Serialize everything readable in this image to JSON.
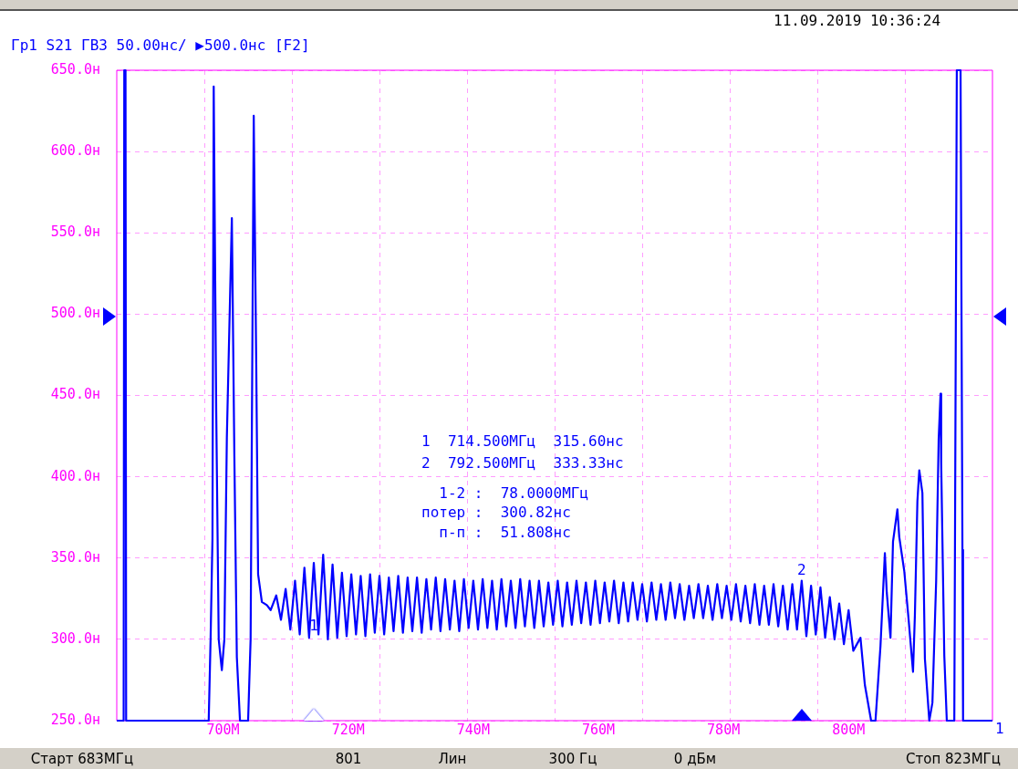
{
  "chart_data": {
    "type": "line",
    "title": "Гр1 S21 ГВЗ 50.00нс/ ▶500.0нс [F2]",
    "x": [
      683,
      684.1,
      684.2,
      684.4,
      684.5,
      697.7,
      698.0,
      698.3,
      698.5,
      698.9,
      699.3,
      699.8,
      700.2,
      700.6,
      701.4,
      701.8,
      702.2,
      702.7,
      704.0,
      704.4,
      704.9,
      705.3,
      705.6,
      706.2,
      707.0,
      707.6,
      708.5,
      709.25,
      710,
      710.75,
      711.5,
      712.25,
      713,
      713.75,
      714.5,
      715.25,
      716,
      716.75,
      717.5,
      718.25,
      719,
      719.75,
      720.5,
      721.25,
      722,
      722.75,
      723.5,
      724.25,
      725,
      725.75,
      726.5,
      727.25,
      728,
      728.75,
      729.5,
      730.25,
      731,
      731.75,
      732.5,
      733.25,
      734,
      734.75,
      735.5,
      736.25,
      737,
      737.75,
      738.5,
      739.25,
      740,
      740.75,
      741.5,
      742.25,
      743,
      743.75,
      744.5,
      745.25,
      746,
      746.75,
      747.5,
      748.25,
      749,
      749.75,
      750.5,
      751.25,
      752,
      752.75,
      753.5,
      754.25,
      755,
      755.75,
      756.5,
      757.25,
      758,
      758.75,
      759.5,
      760.25,
      761,
      761.75,
      762.5,
      763.25,
      764,
      764.75,
      765.5,
      766.25,
      767,
      767.75,
      768.5,
      769.25,
      770,
      770.75,
      771.5,
      772.25,
      773,
      773.75,
      774.5,
      775.25,
      776,
      776.75,
      777.5,
      778.25,
      779,
      779.75,
      780.5,
      781.25,
      782,
      782.75,
      783.5,
      784.25,
      785,
      785.75,
      786.5,
      787.25,
      788,
      788.75,
      789.5,
      790.25,
      791,
      791.75,
      792.5,
      793.25,
      794,
      794.75,
      795.5,
      796.25,
      797,
      797.75,
      798.5,
      799.25,
      800,
      800.75,
      801.9,
      802.6,
      803.6,
      804.3,
      805.1,
      805.8,
      806.1,
      806.7,
      807.1,
      807.8,
      808.1,
      808.9,
      809.6,
      810.3,
      810.6,
      811.0,
      811.3,
      811.8,
      812.2,
      812.9,
      813.4,
      814.0,
      814.4,
      814.7,
      814.8,
      815.3,
      815.7,
      816.9,
      817.3,
      817.9,
      818.2,
      818.3,
      823
    ],
    "series": [
      {
        "color": "#0000ff",
        "values": [
          250,
          250,
          650,
          650,
          250,
          250,
          300,
          362,
          640,
          441,
          300,
          281,
          300,
          424,
          559,
          413,
          289,
          250,
          250,
          300,
          622,
          469,
          340,
          323,
          321,
          318,
          327,
          312,
          331,
          306,
          336,
          303,
          344,
          301,
          347,
          303,
          352,
          300,
          346,
          301,
          341,
          302,
          340,
          303,
          339,
          302,
          340,
          304,
          339,
          303,
          338,
          305,
          339,
          304,
          338,
          305,
          338,
          304,
          337,
          306,
          338,
          305,
          337,
          306,
          336,
          305,
          337,
          307,
          336,
          306,
          337,
          307,
          336,
          306,
          337,
          308,
          336,
          307,
          337,
          308,
          336,
          307,
          336,
          308,
          335,
          309,
          336,
          308,
          335,
          309,
          336,
          310,
          335,
          309,
          336,
          310,
          335,
          311,
          336,
          310,
          335,
          311,
          335,
          312,
          334,
          311,
          335,
          312,
          334,
          312,
          335,
          313,
          334,
          312,
          333,
          313,
          334,
          313,
          333,
          312,
          334,
          313,
          333,
          312,
          334,
          311,
          333,
          310,
          334,
          309,
          333,
          309,
          334,
          308,
          333,
          306,
          334,
          306,
          336,
          302,
          333,
          303,
          332,
          301,
          326,
          300,
          322,
          297,
          318,
          293,
          301,
          272,
          250,
          250,
          296,
          353,
          329,
          301,
          360,
          380,
          363,
          342,
          312,
          280,
          315,
          385,
          404,
          390,
          288,
          250,
          261,
          336,
          423,
          451,
          409,
          290,
          250,
          250,
          650,
          650,
          355,
          250,
          250
        ]
      }
    ],
    "xlim": [
      683,
      823
    ],
    "xticks": [
      {
        "value": 697,
        "label": null
      },
      {
        "value": 700,
        "label": "700M"
      },
      {
        "value": 711,
        "label": null
      },
      {
        "value": 720,
        "label": "720M"
      },
      {
        "value": 725,
        "label": null
      },
      {
        "value": 739,
        "label": null
      },
      {
        "value": 740,
        "label": "740M"
      },
      {
        "value": 753,
        "label": null
      },
      {
        "value": 760,
        "label": "760M"
      },
      {
        "value": 767,
        "label": null
      },
      {
        "value": 780,
        "label": "780M"
      },
      {
        "value": 781,
        "label": null
      },
      {
        "value": 795,
        "label": null
      },
      {
        "value": 800,
        "label": "800M"
      },
      {
        "value": 809,
        "label": null
      }
    ],
    "ylim": [
      250,
      650
    ],
    "yticks": [
      {
        "value": 250,
        "label": "250.0н"
      },
      {
        "value": 300,
        "label": "300.0н"
      },
      {
        "value": 350,
        "label": "350.0н"
      },
      {
        "value": 400,
        "label": "400.0н"
      },
      {
        "value": 450,
        "label": "450.0н"
      },
      {
        "value": 500,
        "label": "500.0н"
      },
      {
        "value": 550,
        "label": "550.0н"
      },
      {
        "value": 600,
        "label": "600.0н"
      },
      {
        "value": 650,
        "label": "650.0н"
      }
    ],
    "grid": true,
    "legend": false,
    "marker": "none",
    "line_style": "solid",
    "annotations": [
      "11.09.2019 10:36:24",
      "1  714.500МГц  315.60нс",
      "2  792.500МГц  333.33нс",
      "  1-2 :  78.0000МГц",
      "потер :  300.82нс",
      "  п-п :  51.808нс",
      "Старт 683МГц",
      "801",
      "Лин",
      "300 Гц",
      "0 дБм",
      "Стоп 823МГц",
      {
        "text": "1",
        "x": 714.5,
        "y": 315.6
      },
      {
        "text": "2",
        "x": 792.5,
        "y": 333.33
      },
      {
        "text": "1",
        "x": 823,
        "y": 250
      }
    ]
  }
}
